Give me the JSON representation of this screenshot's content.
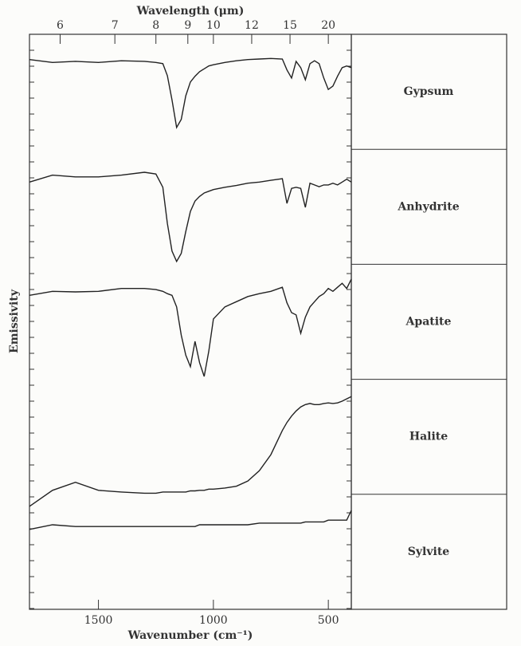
{
  "chart_data": {
    "type": "line",
    "xlabel": "Wavenumber (cm⁻¹)",
    "x2label": "Wavelength (μm)",
    "ylabel": "Emissivity",
    "xlim": [
      1800,
      400
    ],
    "xticks": [
      1500,
      1000,
      500
    ],
    "x2ticks": [
      6,
      7,
      8,
      9,
      10,
      12,
      15,
      20
    ],
    "ylim": [
      0,
      10
    ],
    "color": "#222222",
    "x": [
      1800,
      1700,
      1600,
      1500,
      1400,
      1300,
      1250,
      1220,
      1200,
      1180,
      1160,
      1140,
      1120,
      1100,
      1080,
      1060,
      1040,
      1020,
      1000,
      950,
      900,
      850,
      800,
      750,
      700,
      680,
      660,
      640,
      620,
      600,
      580,
      560,
      540,
      520,
      500,
      480,
      460,
      440,
      420,
      400
    ],
    "series": [
      {
        "name": "Gypsum",
        "values": [
          9.56,
          9.51,
          9.53,
          9.51,
          9.54,
          9.53,
          9.51,
          9.49,
          9.28,
          8.86,
          8.38,
          8.52,
          8.93,
          9.17,
          9.27,
          9.35,
          9.4,
          9.45,
          9.47,
          9.51,
          9.54,
          9.56,
          9.57,
          9.58,
          9.57,
          9.38,
          9.24,
          9.53,
          9.42,
          9.21,
          9.49,
          9.54,
          9.49,
          9.24,
          9.04,
          9.1,
          9.27,
          9.42,
          9.45,
          9.42
        ]
      },
      {
        "name": "Anhydrite",
        "values": [
          7.43,
          7.55,
          7.52,
          7.52,
          7.55,
          7.6,
          7.57,
          7.34,
          6.71,
          6.23,
          6.05,
          6.19,
          6.57,
          6.92,
          7.1,
          7.18,
          7.24,
          7.27,
          7.3,
          7.34,
          7.37,
          7.41,
          7.43,
          7.46,
          7.49,
          7.06,
          7.32,
          7.34,
          7.32,
          6.99,
          7.41,
          7.38,
          7.35,
          7.38,
          7.38,
          7.41,
          7.38,
          7.43,
          7.48,
          7.43
        ]
      },
      {
        "name": "Apatite",
        "values": [
          5.46,
          5.53,
          5.52,
          5.53,
          5.58,
          5.58,
          5.56,
          5.53,
          5.49,
          5.46,
          5.26,
          4.77,
          4.42,
          4.22,
          4.66,
          4.29,
          4.05,
          4.49,
          5.05,
          5.26,
          5.35,
          5.44,
          5.49,
          5.53,
          5.6,
          5.33,
          5.16,
          5.12,
          4.8,
          5.08,
          5.26,
          5.35,
          5.44,
          5.49,
          5.58,
          5.53,
          5.6,
          5.67,
          5.58,
          5.74
        ]
      },
      {
        "name": "Halite",
        "values": [
          1.79,
          2.07,
          2.21,
          2.07,
          2.04,
          2.02,
          2.02,
          2.04,
          2.04,
          2.04,
          2.04,
          2.04,
          2.04,
          2.06,
          2.06,
          2.07,
          2.07,
          2.09,
          2.09,
          2.11,
          2.14,
          2.23,
          2.41,
          2.69,
          3.11,
          3.25,
          3.36,
          3.45,
          3.52,
          3.56,
          3.58,
          3.56,
          3.56,
          3.58,
          3.59,
          3.58,
          3.59,
          3.62,
          3.66,
          3.7
        ]
      },
      {
        "name": "Sylvite",
        "values": [
          1.39,
          1.47,
          1.44,
          1.44,
          1.44,
          1.44,
          1.44,
          1.44,
          1.44,
          1.44,
          1.44,
          1.44,
          1.44,
          1.44,
          1.44,
          1.47,
          1.47,
          1.47,
          1.47,
          1.47,
          1.47,
          1.47,
          1.5,
          1.5,
          1.5,
          1.5,
          1.5,
          1.5,
          1.5,
          1.52,
          1.52,
          1.52,
          1.52,
          1.52,
          1.55,
          1.55,
          1.55,
          1.55,
          1.55,
          1.72
        ]
      }
    ]
  }
}
